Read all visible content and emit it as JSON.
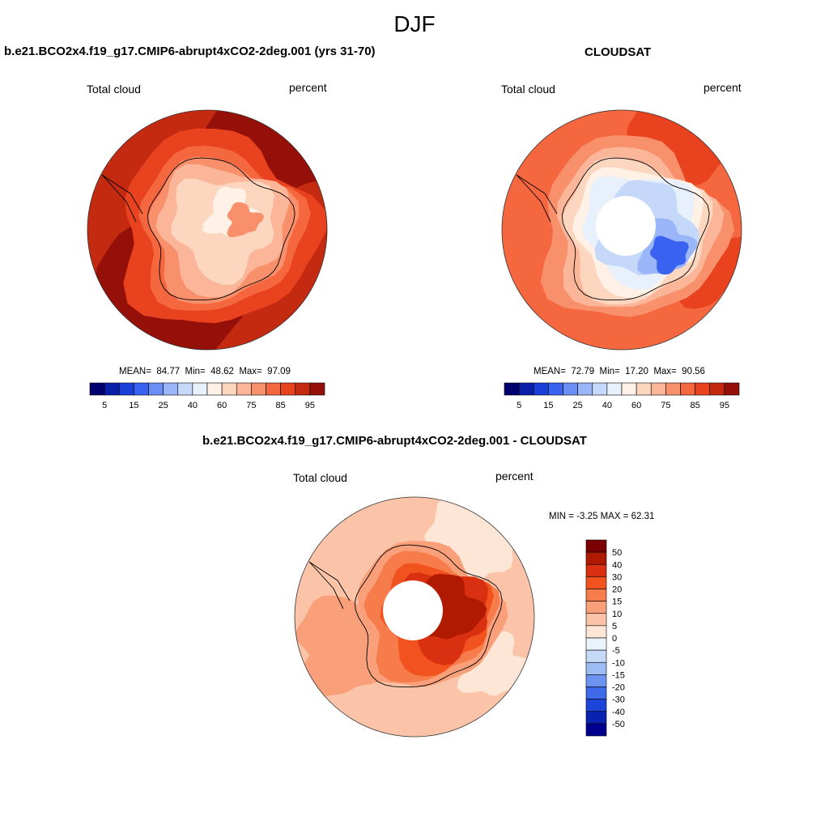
{
  "title": "DJF",
  "palette": [
    "#00006e",
    "#0a1fa8",
    "#1a3ed8",
    "#3a62f0",
    "#6a8ef5",
    "#9ab6f8",
    "#c6d8fa",
    "#e8f0fc",
    "#fff1e6",
    "#fdd6c0",
    "#fbb598",
    "#f9906c",
    "#f5673f",
    "#e8421f",
    "#c42a10",
    "#96100a",
    "#7a0000"
  ],
  "panels": [
    {
      "id": "model",
      "title": "b.e21.BCO2x4.f19_g17.CMIP6-abrupt4xCO2-2deg.001 (yrs 31-70)",
      "left_label": "Total cloud",
      "right_label": "percent",
      "stats": {
        "mean_label": "MEAN=",
        "mean": "84.77",
        "min_label": "Min=",
        "min": "48.62",
        "max_label": "Max=",
        "max": "97.09"
      }
    },
    {
      "id": "obs",
      "title": "CLOUDSAT",
      "left_label": "Total cloud",
      "right_label": "percent",
      "stats": {
        "mean_label": "MEAN=",
        "mean": "72.79",
        "min_label": "Min=",
        "min": "17.20",
        "max_label": "Max=",
        "max": "90.56"
      }
    },
    {
      "id": "diff",
      "title": "b.e21.BCO2x4.f19_g17.CMIP6-abrupt4xCO2-2deg.001 - CLOUDSAT",
      "left_label": "Total cloud",
      "right_label": "percent",
      "stats_text": "MIN =  -3.25 MAX =  62.31"
    }
  ],
  "horizontal_colorbar": {
    "tick_labels": [
      "5",
      "15",
      "25",
      "40",
      "60",
      "75",
      "85",
      "95"
    ],
    "colors": [
      "#00006e",
      "#0a1fa8",
      "#1a3ed8",
      "#3a62f0",
      "#6a8ef5",
      "#9ab6f8",
      "#c6d8fa",
      "#e8f0fc",
      "#fff1e6",
      "#fdd6c0",
      "#fbb598",
      "#f9906c",
      "#f5673f",
      "#e8421f",
      "#c42a10",
      "#96100a"
    ]
  },
  "vertical_colorbar": {
    "tick_labels": [
      "50",
      "40",
      "30",
      "20",
      "15",
      "10",
      "5",
      "0",
      "-5",
      "-10",
      "-15",
      "-20",
      "-30",
      "-40",
      "-50"
    ],
    "colors": [
      "#7a0000",
      "#b01a00",
      "#d83010",
      "#f2521e",
      "#f77c4c",
      "#f9a07a",
      "#fbc4a8",
      "#fde6d6",
      "#eaf2fc",
      "#c6daf8",
      "#9dbcf4",
      "#6b93ef",
      "#3d6ae8",
      "#1b44d8",
      "#0a22b0",
      "#000090"
    ]
  },
  "chart_data": [
    {
      "type": "heatmap",
      "title": "b.e21.BCO2x4.f19_g17.CMIP6-abrupt4xCO2-2deg.001 (yrs 31-70)",
      "projection": "south-polar-stereographic",
      "variable": "Total cloud",
      "units": "percent",
      "mean": 84.77,
      "min": 48.62,
      "max": 97.09,
      "contour_levels": [
        5,
        10,
        15,
        20,
        25,
        30,
        40,
        50,
        60,
        70,
        75,
        80,
        85,
        90,
        95
      ]
    },
    {
      "type": "heatmap",
      "title": "CLOUDSAT",
      "projection": "south-polar-stereographic",
      "variable": "Total cloud",
      "units": "percent",
      "mean": 72.79,
      "min": 17.2,
      "max": 90.56,
      "contour_levels": [
        5,
        10,
        15,
        20,
        25,
        30,
        40,
        50,
        60,
        70,
        75,
        80,
        85,
        90,
        95
      ]
    },
    {
      "type": "heatmap",
      "title": "b.e21.BCO2x4.f19_g17.CMIP6-abrupt4xCO2-2deg.001 - CLOUDSAT",
      "projection": "south-polar-stereographic",
      "variable": "Total cloud",
      "units": "percent",
      "min": -3.25,
      "max": 62.31,
      "contour_levels": [
        -50,
        -40,
        -30,
        -20,
        -15,
        -10,
        -5,
        0,
        5,
        10,
        15,
        20,
        30,
        40,
        50
      ]
    }
  ]
}
